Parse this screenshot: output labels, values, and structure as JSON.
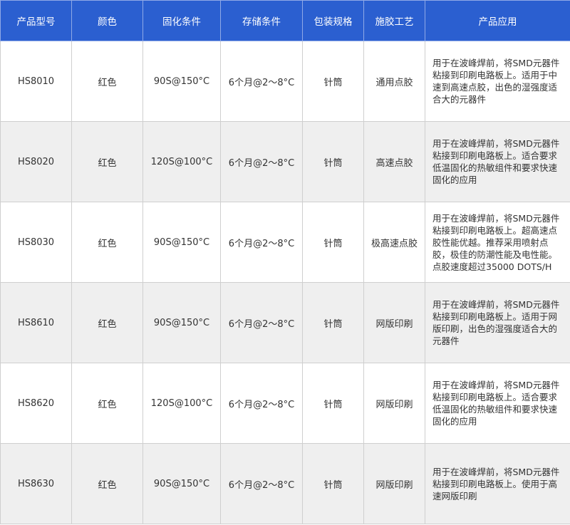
{
  "colors": {
    "header_bg": "#2b5fd0",
    "header_text": "#ffffff",
    "alt_row": "#efefef",
    "border": "#cfcfcf"
  },
  "headers": [
    "产品型号",
    "颜色",
    "固化条件",
    "存储条件",
    "包装规格",
    "施胶工艺",
    "产品应用"
  ],
  "rows": [
    [
      "HS8010",
      "红色",
      "90S@150°C",
      "6个月@2～8°C",
      "针筒",
      "通用点胶",
      "用于在波峰焊前，将SMD元器件粘接到印刷电路板上。适用于中速到高速点胶，出色的湿强度适合大的元器件"
    ],
    [
      "HS8020",
      "红色",
      "120S@100°C",
      "6个月@2～8°C",
      "针筒",
      "高速点胶",
      "用于在波峰焊前，将SMD元器件粘接到印刷电路板上。适合要求低温固化的热敏组件和要求快速固化的应用"
    ],
    [
      "HS8030",
      "红色",
      "90S@150°C",
      "6个月@2～8°C",
      "针筒",
      "极高速点胶",
      "用于在波峰焊前，将SMD元器件粘接到印刷电路板上。超高速点胶性能优越。推荐采用喷射点胶，极佳的防潮性能及电性能。点胶速度超过35000 DOTS/H"
    ],
    [
      "HS8610",
      "红色",
      "90S@150°C",
      "6个月@2～8°C",
      "针筒",
      "网版印刷",
      "用于在波峰焊前，将SMD元器件粘接到印刷电路板上。适用于网版印刷，出色的湿强度适合大的元器件"
    ],
    [
      "HS8620",
      "红色",
      "120S@100°C",
      "6个月@2～8°C",
      "针筒",
      "网版印刷",
      "用于在波峰焊前，将SMD元器件粘接到印刷电路板上。适合要求低温固化的热敏组件和要求快速固化的应用"
    ],
    [
      "HS8630",
      "红色",
      "90S@150°C",
      "6个月@2～8°C",
      "针筒",
      "网版印刷",
      "用于在波峰焊前，将SMD元器件粘接到印刷电路板上。使用于高速网版印刷"
    ]
  ]
}
